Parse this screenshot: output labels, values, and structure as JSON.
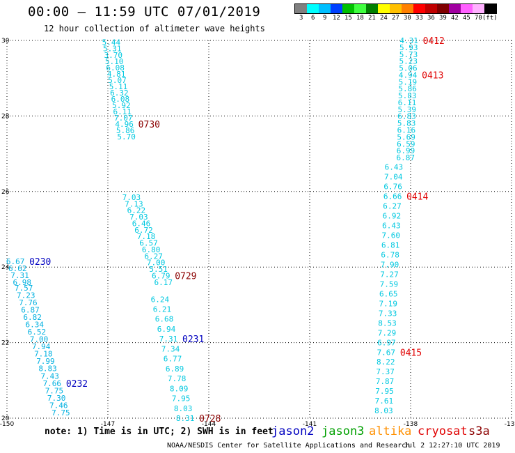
{
  "header": {
    "title": "00:00 – 11:59 UTC 07/01/2019",
    "subtitle": "12 hour collection of altimeter wave heights"
  },
  "colorbar": {
    "colors": [
      "#808080",
      "#00ffff",
      "#00bfff",
      "#0040ff",
      "#00c000",
      "#40ff40",
      "#008000",
      "#ffff00",
      "#ffc000",
      "#ff8000",
      "#ff0000",
      "#c00000",
      "#800000",
      "#a000a0",
      "#ff60ff",
      "#ffb0ff",
      "#000000"
    ],
    "labels": [
      "3",
      "6",
      "9",
      "12",
      "15",
      "18",
      "21",
      "24",
      "27",
      "30",
      "33",
      "36",
      "39",
      "42",
      "45",
      "70",
      "(ft)"
    ]
  },
  "chart_data": {
    "type": "scatter",
    "title": "12 hour collection of altimeter wave heights",
    "xlabel": "",
    "ylabel": "",
    "xlim": [
      -150,
      -135
    ],
    "ylim": [
      20,
      30
    ],
    "x_ticks": [
      "-150",
      "-147",
      "-144",
      "-141",
      "-138",
      "-135"
    ],
    "y_ticks": [
      "20",
      "22",
      "24",
      "26",
      "28",
      "30"
    ],
    "grid": true,
    "tracks": [
      {
        "pass_label": "0730",
        "color": "#00c8e0",
        "label_color": "#8b0000",
        "x_start": -146.9,
        "x_end": -146.45,
        "y_start": 29.95,
        "y_end": 27.45,
        "values": [
          "5.44",
          "5.31",
          "3.70",
          "5.10",
          "6.08",
          "4.81",
          "5.07",
          "5.11",
          "6.32",
          "6.08",
          "5.92",
          "6.11",
          "7.07",
          "4.96",
          "5.86",
          "5.70"
        ],
        "label_at": "4.96"
      },
      {
        "pass_label": "0729",
        "color": "#00c8e0",
        "label_color": "#8b0000",
        "x_start": -146.3,
        "x_end": -145.35,
        "y_start": 25.85,
        "y_end": 23.6,
        "values": [
          "7.03",
          "7.13",
          "6.22",
          "7.03",
          "6.46",
          "6.72",
          "7.18",
          "6.57",
          "6.80",
          "6.27",
          "7.00",
          "5.51",
          "6.79",
          "6.17"
        ],
        "label_at": "6.79"
      },
      {
        "pass_label": "0728",
        "color": "#00c8e0",
        "label_color": "#8b0000",
        "x_start": -145.45,
        "x_end": -144.7,
        "y_start": 23.15,
        "y_end": 20.0,
        "values": [
          "6.24",
          "6.21",
          "6.68",
          "6.94",
          "7.31",
          "7.34",
          "6.77",
          "6.89",
          "7.78",
          "8.09",
          "7.95",
          "8.03",
          "8.31"
        ],
        "label_at": "8.31"
      },
      {
        "pass_label": "0412",
        "color": "#00c8e0",
        "label_color": "#e00000",
        "x_start": -138.05,
        "x_end": -138.15,
        "y_start": 30.0,
        "y_end": 26.9,
        "values": [
          "4.31",
          "5.93",
          "5.73",
          "5.23",
          "5.06",
          "4.94",
          "5.19",
          "5.86",
          "5.83",
          "6.11",
          "5.39",
          "6.83",
          "5.83",
          "6.16",
          "5.69",
          "6.59",
          "6.99",
          "6.87"
        ],
        "label_at": "4.31"
      },
      {
        "pass_label": "0413",
        "color": "#00c8e0",
        "label_color": "#e00000",
        "label_at": "4.94"
      },
      {
        "pass_label": "0414",
        "color": "#00c8e0",
        "label_color": "#e00000",
        "x_start": -138.5,
        "x_end": -138.8,
        "y_start": 26.65,
        "y_end": 20.2,
        "values": [
          "6.43",
          "7.04",
          "6.76",
          "6.66",
          "6.27",
          "6.92",
          "6.43",
          "7.60",
          "6.81",
          "6.78",
          "7.90",
          "7.27",
          "7.59",
          "6.65",
          "7.19",
          "7.33",
          "8.53",
          "7.29",
          "6.97",
          "7.67",
          "8.22",
          "7.37",
          "7.87",
          "7.95",
          "7.61",
          "8.03"
        ],
        "label_at": "6.66"
      },
      {
        "pass_label": "0415",
        "color": "#00c8e0",
        "label_color": "#e00000",
        "label_at": "7.67"
      },
      {
        "pass_label": "0230",
        "color": "#00b0e0",
        "label_color": "#0000c0",
        "x_start": -149.75,
        "x_end": -149.55,
        "y_start": 24.15,
        "y_end": 23.6,
        "values": [
          "6.67",
          "6.62",
          "7.31",
          "6.98"
        ],
        "label_at": "6.67"
      },
      {
        "pass_label": "0231",
        "color": "#00b0e0",
        "label_color": "#0000c0",
        "label_at": "7.31"
      },
      {
        "pass_label": "0232",
        "color": "#00b0e0",
        "label_color": "#0000c0",
        "x_start": -149.5,
        "x_end": -148.4,
        "y_start": 23.45,
        "y_end": 20.15,
        "values": [
          "7.57",
          "7.23",
          "7.76",
          "6.87",
          "6.82",
          "6.34",
          "6.52",
          "7.00",
          "7.94",
          "7.18",
          "7.99",
          "8.83",
          "7.43",
          "7.66",
          "7.75",
          "7.30",
          "7.46",
          "7.75"
        ],
        "label_at": "7.66"
      }
    ]
  },
  "footer": {
    "note": "note: 1) Time is in UTC; 2) SWH is in feet",
    "satellites": [
      {
        "name": "jason2",
        "color": "#0000c0"
      },
      {
        "name": "jason3",
        "color": "#00a000"
      },
      {
        "name": "altika",
        "color": "#ff9000"
      },
      {
        "name": "cryosat",
        "color": "#e00000"
      },
      {
        "name": "s3a",
        "color": "#8b0000"
      }
    ],
    "credit": "NOAA/NESDIS Center for Satellite Applications and Research",
    "datestamp": "Jul  2 12:27:10 UTC 2019"
  }
}
